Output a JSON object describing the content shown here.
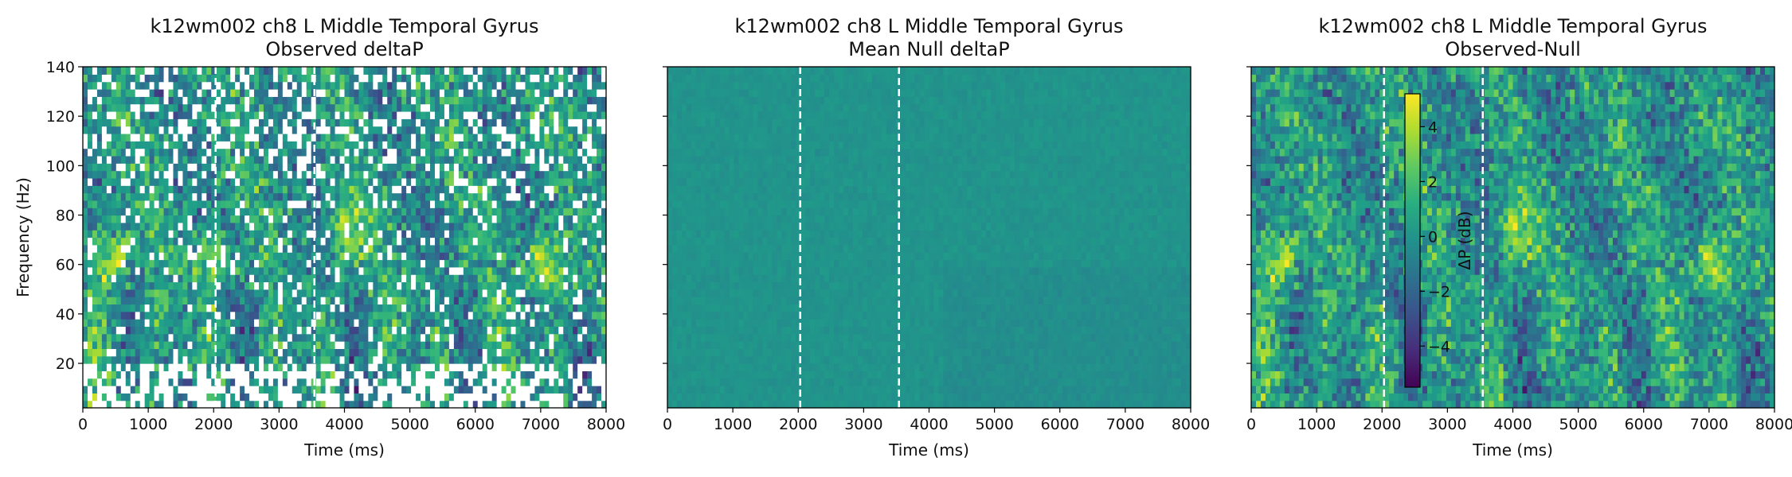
{
  "chart_data": [
    {
      "type": "heatmap",
      "title": "k12wm002 ch8 L Middle Temporal Gyrus",
      "subtitle": "Observed deltaP",
      "xlabel": "Time (ms)",
      "ylabel": "Frequency (Hz)",
      "xlim": [
        0,
        8000
      ],
      "ylim": [
        2,
        140
      ],
      "xticks": [
        0,
        1000,
        2000,
        3000,
        4000,
        5000,
        6000,
        7000,
        8000
      ],
      "yticks": [
        20,
        40,
        60,
        80,
        100,
        120,
        140
      ],
      "show_yticklabels": true,
      "event_lines_ms": [
        2030,
        3540
      ],
      "colormap": "viridis",
      "color_range_db": [
        -5.5,
        5.2
      ],
      "hotspots": [
        {
          "time_ms": 450,
          "freq_hz": 60,
          "value_db": 4.5
        },
        {
          "time_ms": 2000,
          "freq_hz": 60,
          "value_db": 3.5
        },
        {
          "time_ms": 4050,
          "freq_hz": 72,
          "value_db": 3.8
        },
        {
          "time_ms": 7050,
          "freq_hz": 60,
          "value_db": 4.5
        }
      ],
      "masked_white": true
    },
    {
      "type": "heatmap",
      "title": "k12wm002 ch8 L Middle Temporal Gyrus",
      "subtitle": "Mean Null deltaP",
      "xlabel": "Time (ms)",
      "ylabel": "",
      "xlim": [
        0,
        8000
      ],
      "ylim": [
        2,
        140
      ],
      "xticks": [
        0,
        1000,
        2000,
        3000,
        4000,
        5000,
        6000,
        7000,
        8000
      ],
      "yticks": [
        20,
        40,
        60,
        80,
        100,
        120,
        140
      ],
      "show_yticklabels": false,
      "event_lines_ms": [
        2030,
        3540
      ],
      "colormap": "viridis",
      "color_range_db": [
        -5.5,
        5.2
      ],
      "approx_value_db": 0
    },
    {
      "type": "heatmap",
      "title": "k12wm002 ch8 L Middle Temporal Gyrus",
      "subtitle": "Observed-Null",
      "xlabel": "Time (ms)",
      "ylabel": "",
      "xlim": [
        0,
        8000
      ],
      "ylim": [
        2,
        140
      ],
      "xticks": [
        0,
        1000,
        2000,
        3000,
        4000,
        5000,
        6000,
        7000,
        8000
      ],
      "yticks": [
        20,
        40,
        60,
        80,
        100,
        120,
        140
      ],
      "show_yticklabels": false,
      "event_lines_ms": [
        2030,
        3540
      ],
      "colormap": "viridis",
      "color_range_db": [
        -5.5,
        5.2
      ],
      "hotspots": [
        {
          "time_ms": 450,
          "freq_hz": 60,
          "value_db": 4.5
        },
        {
          "time_ms": 4050,
          "freq_hz": 72,
          "value_db": 3.8
        },
        {
          "time_ms": 7050,
          "freq_hz": 60,
          "value_db": 4.5
        }
      ],
      "colorbar": {
        "label": "ΔP (dB)",
        "ticks": [
          -4,
          -2,
          0,
          2,
          4
        ],
        "range": [
          -5.5,
          5.2
        ]
      }
    }
  ]
}
